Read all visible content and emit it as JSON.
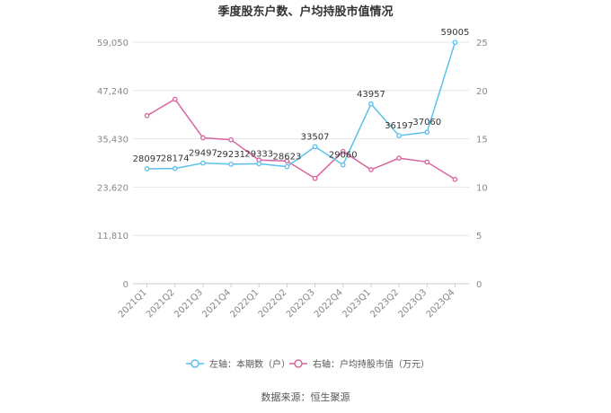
{
  "chart_data": {
    "type": "line",
    "title": "季度股东户数、户均持股市值情况",
    "categories": [
      "2021Q1",
      "2021Q2",
      "2021Q3",
      "2021Q4",
      "2022Q1",
      "2022Q2",
      "2022Q3",
      "2022Q4",
      "2023Q1",
      "2023Q2",
      "2023Q3",
      "2023Q4"
    ],
    "left_axis": {
      "ticks": [
        "0",
        "11,810",
        "23,620",
        "35,430",
        "47,240",
        "59,050"
      ],
      "ylim": [
        0,
        59050
      ]
    },
    "right_axis": {
      "ticks": [
        "0",
        "5",
        "10",
        "15",
        "20",
        "25"
      ],
      "ylim": [
        0,
        25
      ]
    },
    "series": [
      {
        "name": "左轴：本期数（户）",
        "axis": "left",
        "color": "#5bc0eb",
        "values": [
          28097,
          28174,
          29497,
          29231,
          29333,
          28623,
          33507,
          29060,
          43957,
          36197,
          37060,
          59005
        ],
        "labels": [
          "28097",
          "28174",
          "29497",
          "29231",
          "29333",
          "28623",
          "33507",
          "29060",
          "43957",
          "36197",
          "37060",
          "59005"
        ]
      },
      {
        "name": "右轴：户均持股市值（万元）",
        "axis": "right",
        "color": "#d9639f",
        "values": [
          17.4,
          19.1,
          15.1,
          14.9,
          12.8,
          12.7,
          10.9,
          13.7,
          11.8,
          13.0,
          12.6,
          10.8
        ]
      }
    ],
    "grid": true,
    "legend": "bottom-center"
  },
  "source": "数据来源：恒生聚源"
}
